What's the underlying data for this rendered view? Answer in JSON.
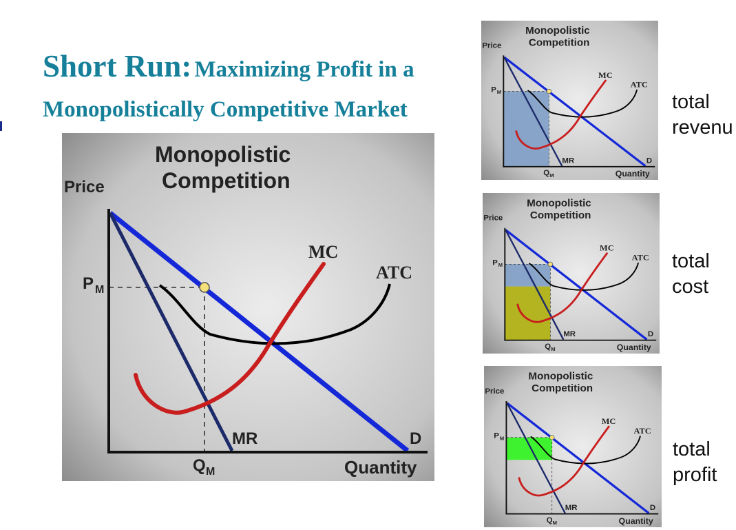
{
  "slide": {
    "title_bold": "Short Run:",
    "title_rest": "Maximizing Profit in a",
    "title_line2": "Monopolistically Competitive Market"
  },
  "diagram": {
    "title_line1": "Monopolistic",
    "title_line2": "Competition",
    "price_axis": "Price",
    "quantity_axis": "Quantity",
    "pm_main": "P",
    "pm_sub": "M",
    "qm_main": "Q",
    "qm_sub": "M",
    "mc": "MC",
    "atc": "ATC",
    "mr": "MR",
    "d": "D"
  },
  "panels": [
    {
      "label_line1": "total",
      "label_line2": "revenu",
      "shaded": "total-revenue",
      "colors": [
        "#7f9ec6"
      ]
    },
    {
      "label_line1": "total",
      "label_line2": "cost",
      "shaded": "total-cost",
      "colors": [
        "#7f9ec6",
        "#b3b41f"
      ]
    },
    {
      "label_line1": "total",
      "label_line2": "profit",
      "shaded": "total-profit",
      "colors": [
        "#3ff22f"
      ]
    }
  ],
  "colors": {
    "title": "#16809a",
    "demand": "#1428d8",
    "mr": "#1c2a6a",
    "mc": "#c81e1e",
    "atc": "#000000",
    "point": "#f3e07a"
  }
}
